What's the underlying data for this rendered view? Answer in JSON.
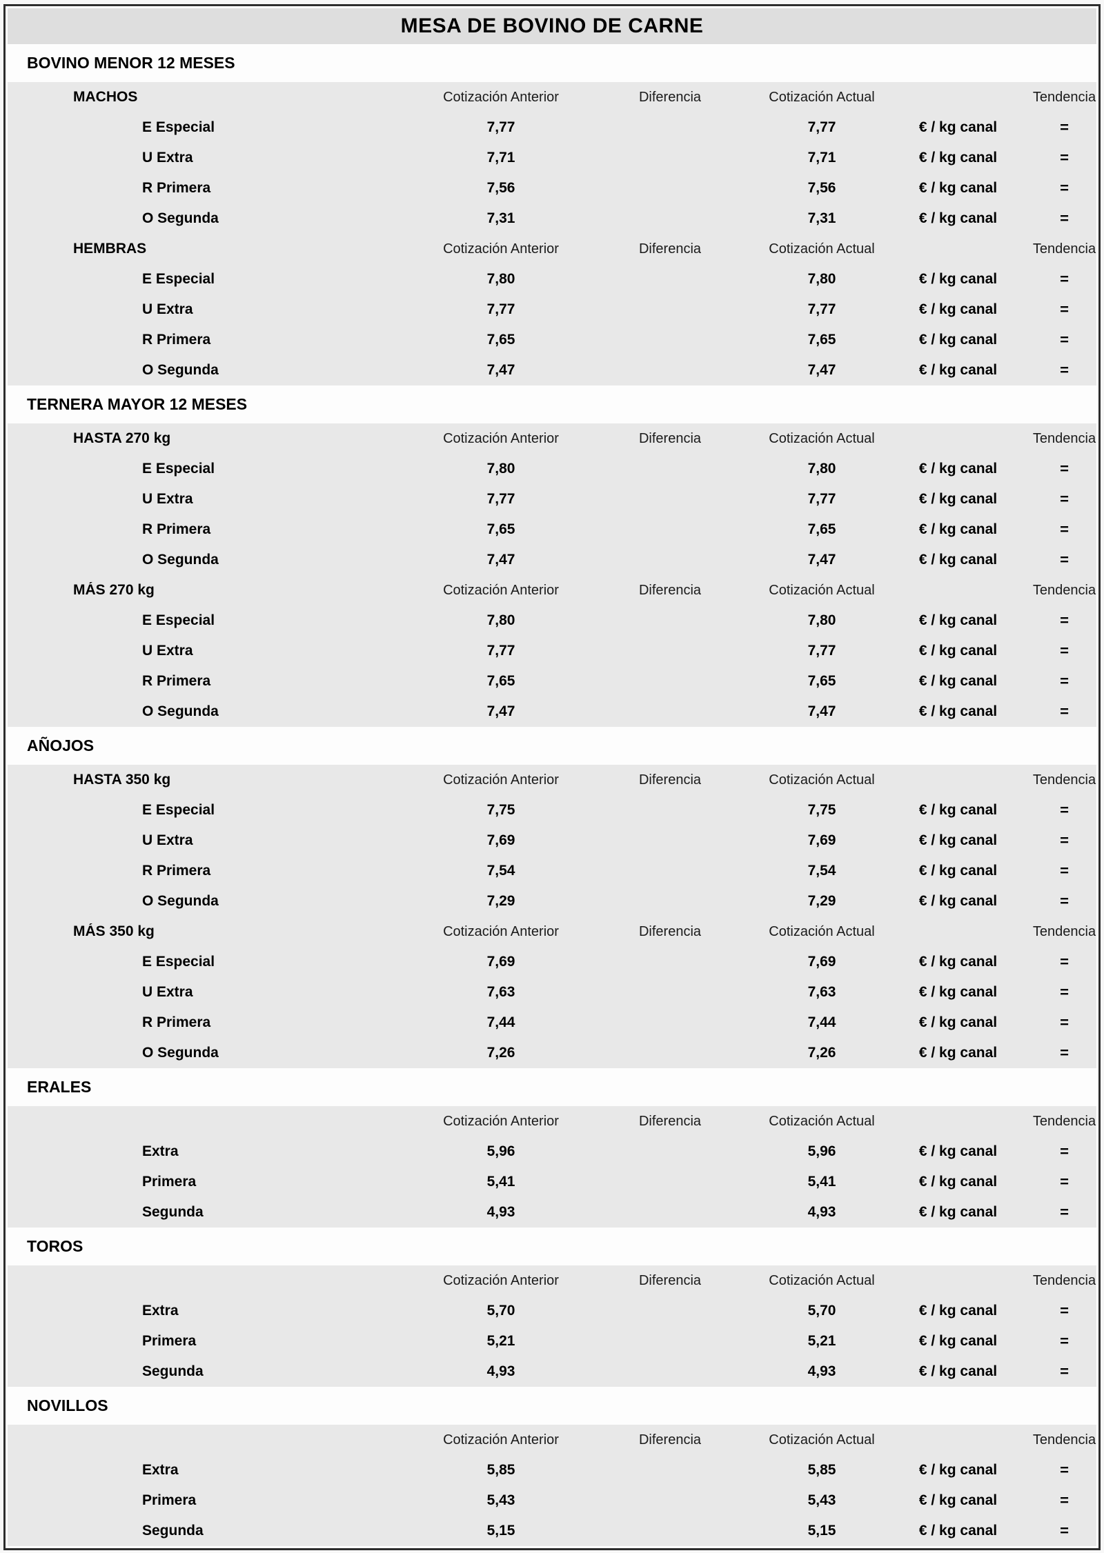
{
  "title": "MESA DE BOVINO DE CARNE",
  "columns": {
    "anterior": "Cotización Anterior",
    "diferencia": "Diferencia",
    "actual": "Cotización Actual",
    "tendencia": "Tendencia"
  },
  "unit_label": "€ / kg canal",
  "colors": {
    "frame_border": "#2d2d2d",
    "title_bg": "#dedede",
    "band_bg": "#fdfdfd",
    "group_bg": "#e8e8e8",
    "text": "#000000"
  },
  "sections": [
    {
      "name": "BOVINO MENOR 12 MESES",
      "groups": [
        {
          "label": "MACHOS",
          "rows": [
            {
              "label": "E Especial",
              "anterior": "7,77",
              "diferencia": "",
              "actual": "7,77",
              "trend": "="
            },
            {
              "label": "U Extra",
              "anterior": "7,71",
              "diferencia": "",
              "actual": "7,71",
              "trend": "="
            },
            {
              "label": "R Primera",
              "anterior": "7,56",
              "diferencia": "",
              "actual": "7,56",
              "trend": "="
            },
            {
              "label": "O Segunda",
              "anterior": "7,31",
              "diferencia": "",
              "actual": "7,31",
              "trend": "="
            }
          ]
        },
        {
          "label": "HEMBRAS",
          "rows": [
            {
              "label": "E Especial",
              "anterior": "7,80",
              "diferencia": "",
              "actual": "7,80",
              "trend": "="
            },
            {
              "label": "U Extra",
              "anterior": "7,77",
              "diferencia": "",
              "actual": "7,77",
              "trend": "="
            },
            {
              "label": "R Primera",
              "anterior": "7,65",
              "diferencia": "",
              "actual": "7,65",
              "trend": "="
            },
            {
              "label": "O Segunda",
              "anterior": "7,47",
              "diferencia": "",
              "actual": "7,47",
              "trend": "="
            }
          ]
        }
      ]
    },
    {
      "name": "TERNERA MAYOR 12 MESES",
      "groups": [
        {
          "label": "HASTA 270 kg",
          "rows": [
            {
              "label": "E Especial",
              "anterior": "7,80",
              "diferencia": "",
              "actual": "7,80",
              "trend": "="
            },
            {
              "label": "U Extra",
              "anterior": "7,77",
              "diferencia": "",
              "actual": "7,77",
              "trend": "="
            },
            {
              "label": "R Primera",
              "anterior": "7,65",
              "diferencia": "",
              "actual": "7,65",
              "trend": "="
            },
            {
              "label": "O Segunda",
              "anterior": "7,47",
              "diferencia": "",
              "actual": "7,47",
              "trend": "="
            }
          ]
        },
        {
          "label": "MÁS 270 kg",
          "rows": [
            {
              "label": "E Especial",
              "anterior": "7,80",
              "diferencia": "",
              "actual": "7,80",
              "trend": "="
            },
            {
              "label": "U Extra",
              "anterior": "7,77",
              "diferencia": "",
              "actual": "7,77",
              "trend": "="
            },
            {
              "label": "R Primera",
              "anterior": "7,65",
              "diferencia": "",
              "actual": "7,65",
              "trend": "="
            },
            {
              "label": "O Segunda",
              "anterior": "7,47",
              "diferencia": "",
              "actual": "7,47",
              "trend": "="
            }
          ]
        }
      ]
    },
    {
      "name": "AÑOJOS",
      "groups": [
        {
          "label": "HASTA 350 kg",
          "rows": [
            {
              "label": "E Especial",
              "anterior": "7,75",
              "diferencia": "",
              "actual": "7,75",
              "trend": "="
            },
            {
              "label": "U Extra",
              "anterior": "7,69",
              "diferencia": "",
              "actual": "7,69",
              "trend": "="
            },
            {
              "label": "R Primera",
              "anterior": "7,54",
              "diferencia": "",
              "actual": "7,54",
              "trend": "="
            },
            {
              "label": "O Segunda",
              "anterior": "7,29",
              "diferencia": "",
              "actual": "7,29",
              "trend": "="
            }
          ]
        },
        {
          "label": "MÁS 350 kg",
          "rows": [
            {
              "label": "E Especial",
              "anterior": "7,69",
              "diferencia": "",
              "actual": "7,69",
              "trend": "="
            },
            {
              "label": "U Extra",
              "anterior": "7,63",
              "diferencia": "",
              "actual": "7,63",
              "trend": "="
            },
            {
              "label": "R Primera",
              "anterior": "7,44",
              "diferencia": "",
              "actual": "7,44",
              "trend": "="
            },
            {
              "label": "O Segunda",
              "anterior": "7,26",
              "diferencia": "",
              "actual": "7,26",
              "trend": "="
            }
          ]
        }
      ]
    },
    {
      "name": "ERALES",
      "groups": [
        {
          "label": "",
          "rows": [
            {
              "label": "Extra",
              "anterior": "5,96",
              "diferencia": "",
              "actual": "5,96",
              "trend": "="
            },
            {
              "label": "Primera",
              "anterior": "5,41",
              "diferencia": "",
              "actual": "5,41",
              "trend": "="
            },
            {
              "label": "Segunda",
              "anterior": "4,93",
              "diferencia": "",
              "actual": "4,93",
              "trend": "="
            }
          ]
        }
      ]
    },
    {
      "name": "TOROS",
      "groups": [
        {
          "label": "",
          "rows": [
            {
              "label": "Extra",
              "anterior": "5,70",
              "diferencia": "",
              "actual": "5,70",
              "trend": "="
            },
            {
              "label": "Primera",
              "anterior": "5,21",
              "diferencia": "",
              "actual": "5,21",
              "trend": "="
            },
            {
              "label": "Segunda",
              "anterior": "4,93",
              "diferencia": "",
              "actual": "4,93",
              "trend": "="
            }
          ]
        }
      ]
    },
    {
      "name": "NOVILLOS",
      "groups": [
        {
          "label": "",
          "rows": [
            {
              "label": "Extra",
              "anterior": "5,85",
              "diferencia": "",
              "actual": "5,85",
              "trend": "="
            },
            {
              "label": "Primera",
              "anterior": "5,43",
              "diferencia": "",
              "actual": "5,43",
              "trend": "="
            },
            {
              "label": "Segunda",
              "anterior": "5,15",
              "diferencia": "",
              "actual": "5,15",
              "trend": "="
            }
          ]
        }
      ]
    }
  ]
}
